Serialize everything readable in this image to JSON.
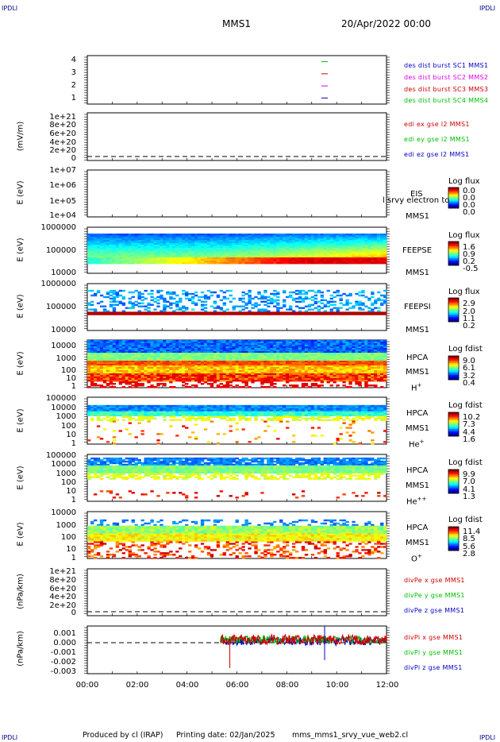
{
  "header": {
    "corner_tl": "IPDLI",
    "corner_tr": "IPDLI",
    "corner_bl": "IPDLI",
    "corner_br": "IPDLI",
    "spacecraft": "MMS1",
    "datetime": "20/Apr/2022 00:00"
  },
  "footer": {
    "produced": "Produced by cl (IRAP)",
    "printing": "Printing date: 02/Jan/2025",
    "file": "mms_mms1_srvy_vue_web2.cl"
  },
  "colors": {
    "blue": "#0000c8",
    "magenta": "#e000e0",
    "red": "#d00000",
    "green": "#00c000"
  },
  "chart_data": [
    {
      "type": "line",
      "panel": "burst",
      "yticks": [
        "4",
        "3",
        "2",
        "1"
      ],
      "legend": [
        {
          "text": "des dist burst SC1 MMS1",
          "color": "#0000c8"
        },
        {
          "text": "des dist burst SC2 MMS2",
          "color": "#e000e0"
        },
        {
          "text": "des dist burst SC3 MMS3",
          "color": "#d00000"
        },
        {
          "text": "des dist burst SC4 MMS4",
          "color": "#00c000"
        }
      ],
      "x_range": [
        "00:00",
        "12:00"
      ],
      "marks": [
        {
          "x": "09:30",
          "y": 4,
          "color": "#00c000"
        },
        {
          "x": "09:30",
          "y": 3,
          "color": "#d00000"
        },
        {
          "x": "09:30",
          "y": 2,
          "color": "#e000e0"
        },
        {
          "x": "09:30",
          "y": 1,
          "color": "#0000c8"
        }
      ]
    },
    {
      "type": "line",
      "panel": "edi",
      "ylabel": "(mV/m)",
      "yticks": [
        "1e+21",
        "8e+20",
        "6e+20",
        "4e+20",
        "2e+20",
        "0"
      ],
      "legend": [
        {
          "text": "edi ex gse l2 MMS1",
          "color": "#d00000"
        },
        {
          "text": "edi ey gse l2 MMS1",
          "color": "#00c000"
        },
        {
          "text": "edi ez gse l2 MMS1",
          "color": "#0000c8"
        }
      ]
    },
    {
      "type": "heatmap",
      "panel": "eis",
      "ylabel": "E (eV)",
      "yticks": [
        "1e+07",
        "1e+06",
        "1e+05",
        "1e+04"
      ],
      "labels": [
        "EIS",
        "MMS1"
      ],
      "overlay_text": "l srvy electron to",
      "cbar_title": "Log flux",
      "cbar_ticks": [
        "0.0",
        "0.0",
        "0.0",
        "0.0"
      ]
    },
    {
      "type": "heatmap",
      "panel": "feeps_e",
      "ylabel": "E (eV)",
      "yticks": [
        "1000000",
        "100000",
        "10000"
      ],
      "labels": [
        "FEEPSE",
        "MMS1"
      ],
      "cbar_title": "Log flux",
      "cbar_ticks": [
        "1.6",
        "0.9",
        "0.2",
        "-0.5"
      ]
    },
    {
      "type": "heatmap",
      "panel": "feeps_i",
      "ylabel": "E (eV)",
      "yticks": [
        "1000000",
        "100000",
        "10000"
      ],
      "labels": [
        "FEEPSI",
        "MMS1"
      ],
      "cbar_title": "Log flux",
      "cbar_ticks": [
        "2.9",
        "2.0",
        "1.1",
        "0.2"
      ]
    },
    {
      "type": "heatmap",
      "panel": "hpca_h",
      "ylabel": "E (eV)",
      "yticks": [
        "10000",
        "1000",
        "100",
        "10",
        "1"
      ],
      "labels": [
        "HPCA",
        "MMS1"
      ],
      "species": "H",
      "species_sup": "+",
      "cbar_title": "Log fdist",
      "cbar_ticks": [
        "9.0",
        "6.1",
        "3.2",
        "0.4"
      ]
    },
    {
      "type": "heatmap",
      "panel": "hpca_he",
      "ylabel": "E (eV)",
      "yticks": [
        "100000",
        "10000",
        "1000",
        "100",
        "10",
        "1"
      ],
      "labels": [
        "HPCA",
        "MMS1"
      ],
      "species": "He",
      "species_sup": "+",
      "cbar_title": "Log fdist",
      "cbar_ticks": [
        "10.2",
        "7.3",
        "4.4",
        "1.6"
      ]
    },
    {
      "type": "heatmap",
      "panel": "hpca_he2",
      "ylabel": "E (eV)",
      "yticks": [
        "100000",
        "10000",
        "1000",
        "100",
        "10",
        "1"
      ],
      "labels": [
        "HPCA",
        "MMS1"
      ],
      "species": "He",
      "species_sup": "++",
      "cbar_title": "Log fdist",
      "cbar_ticks": [
        "9.9",
        "7.0",
        "4.1",
        "1.3"
      ]
    },
    {
      "type": "heatmap",
      "panel": "hpca_o",
      "ylabel": "E (eV)",
      "yticks": [
        "10000",
        "1000",
        "100",
        "10",
        "1"
      ],
      "labels": [
        "HPCA",
        "MMS1"
      ],
      "species": "O",
      "species_sup": "+",
      "cbar_title": "Log fdist",
      "cbar_ticks": [
        "11.4",
        "8.5",
        "5.6",
        "2.8"
      ]
    },
    {
      "type": "line",
      "panel": "divpe",
      "ylabel": "(nPa/km)",
      "yticks": [
        "1e+21",
        "8e+20",
        "6e+20",
        "4e+20",
        "2e+20",
        "0"
      ],
      "legend": [
        {
          "text": "divPe x gse MMS1",
          "color": "#d00000"
        },
        {
          "text": "divPe y gse MMS1",
          "color": "#00c000"
        },
        {
          "text": "divPe z gse MMS1",
          "color": "#0000c8"
        }
      ]
    },
    {
      "type": "line",
      "panel": "divpi",
      "ylabel": "(nPa/km)",
      "yticks": [
        "0.001",
        "0.000",
        "-0.001",
        "-0.002",
        "-0.003"
      ],
      "ylim": [
        -0.003,
        0.0012
      ],
      "legend": [
        {
          "text": "divPi x gse MMS1",
          "color": "#d00000"
        },
        {
          "text": "divPi y gse MMS1",
          "color": "#00c000"
        },
        {
          "text": "divPi z gse MMS1",
          "color": "#0000c8"
        }
      ],
      "data_start": "05:20",
      "data_end": "12:00"
    }
  ],
  "xaxis": {
    "ticks": [
      "00:00",
      "02:00",
      "04:00",
      "06:00",
      "08:00",
      "10:00",
      "12:00"
    ]
  }
}
